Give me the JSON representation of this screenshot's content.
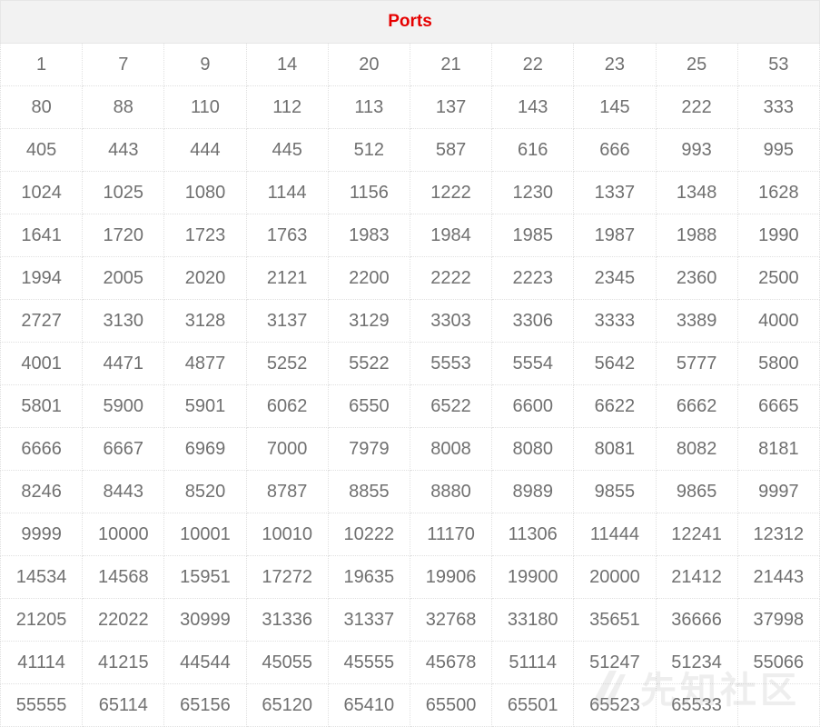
{
  "table": {
    "header": "Ports",
    "rows": [
      [
        "1",
        "7",
        "9",
        "14",
        "20",
        "21",
        "22",
        "23",
        "25",
        "53"
      ],
      [
        "80",
        "88",
        "110",
        "112",
        "113",
        "137",
        "143",
        "145",
        "222",
        "333"
      ],
      [
        "405",
        "443",
        "444",
        "445",
        "512",
        "587",
        "616",
        "666",
        "993",
        "995"
      ],
      [
        "1024",
        "1025",
        "1080",
        "1144",
        "1156",
        "1222",
        "1230",
        "1337",
        "1348",
        "1628"
      ],
      [
        "1641",
        "1720",
        "1723",
        "1763",
        "1983",
        "1984",
        "1985",
        "1987",
        "1988",
        "1990"
      ],
      [
        "1994",
        "2005",
        "2020",
        "2121",
        "2200",
        "2222",
        "2223",
        "2345",
        "2360",
        "2500"
      ],
      [
        "2727",
        "3130",
        "3128",
        "3137",
        "3129",
        "3303",
        "3306",
        "3333",
        "3389",
        "4000"
      ],
      [
        "4001",
        "4471",
        "4877",
        "5252",
        "5522",
        "5553",
        "5554",
        "5642",
        "5777",
        "5800"
      ],
      [
        "5801",
        "5900",
        "5901",
        "6062",
        "6550",
        "6522",
        "6600",
        "6622",
        "6662",
        "6665"
      ],
      [
        "6666",
        "6667",
        "6969",
        "7000",
        "7979",
        "8008",
        "8080",
        "8081",
        "8082",
        "8181"
      ],
      [
        "8246",
        "8443",
        "8520",
        "8787",
        "8855",
        "8880",
        "8989",
        "9855",
        "9865",
        "9997"
      ],
      [
        "9999",
        "10000",
        "10001",
        "10010",
        "10222",
        "11170",
        "11306",
        "11444",
        "12241",
        "12312"
      ],
      [
        "14534",
        "14568",
        "15951",
        "17272",
        "19635",
        "19906",
        "19900",
        "20000",
        "21412",
        "21443"
      ],
      [
        "21205",
        "22022",
        "30999",
        "31336",
        "31337",
        "32768",
        "33180",
        "35651",
        "36666",
        "37998"
      ],
      [
        "41114",
        "41215",
        "44544",
        "45055",
        "45555",
        "45678",
        "51114",
        "51247",
        "51234",
        "55066"
      ],
      [
        "55555",
        "65114",
        "65156",
        "65120",
        "65410",
        "65500",
        "65501",
        "65523",
        "65533",
        ""
      ]
    ]
  },
  "watermark": {
    "text": "先知社区",
    "icon": "xianzhi-logo-icon"
  }
}
